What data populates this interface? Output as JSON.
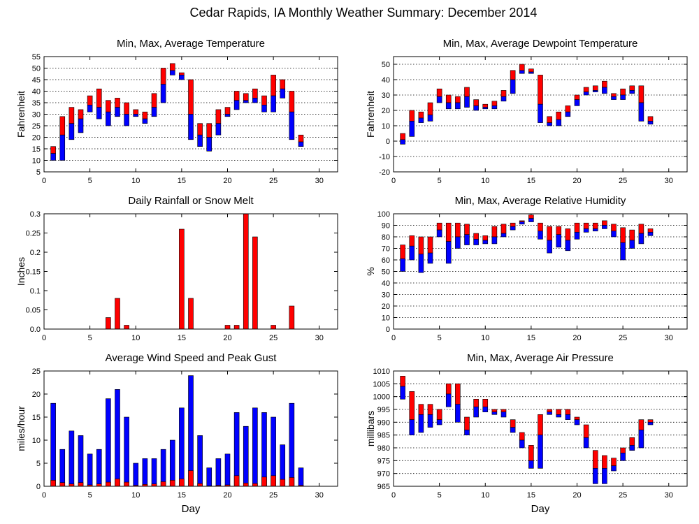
{
  "figure": {
    "title": "Cedar Rapids, IA Monthly Weather Summary: December 2014"
  },
  "colors": {
    "max_segment": "#ff0000",
    "min_segment": "#0000ff",
    "outline": "#000000",
    "grid": "#000000"
  },
  "chart_data": [
    {
      "id": "temp",
      "type": "bar",
      "style": "floating-range",
      "title": "Min, Max, Average Temperature",
      "xlabel": "",
      "ylabel": "Fahrenheit",
      "xlim": [
        0,
        32
      ],
      "ylim": [
        5,
        55
      ],
      "xticks": [
        0,
        5,
        10,
        15,
        20,
        25,
        30
      ],
      "yticks": [
        5,
        10,
        15,
        20,
        25,
        30,
        35,
        40,
        45,
        50,
        55
      ],
      "grid": true,
      "x": [
        1,
        2,
        3,
        4,
        5,
        6,
        7,
        8,
        9,
        10,
        11,
        12,
        13,
        14,
        15,
        16,
        17,
        18,
        19,
        20,
        21,
        22,
        23,
        24,
        25,
        26,
        27,
        28
      ],
      "min": [
        10,
        10,
        19,
        22,
        31,
        28,
        25,
        29,
        25,
        29,
        26,
        29,
        35,
        47,
        45,
        19,
        16,
        14,
        21,
        29,
        32,
        35,
        35,
        31,
        31,
        37,
        19,
        16
      ],
      "avg": [
        13,
        21,
        26,
        28,
        34,
        33,
        31,
        33,
        30,
        30,
        28,
        33,
        43,
        49,
        47,
        30,
        21,
        20,
        26,
        30,
        36,
        36,
        37,
        34,
        38,
        41,
        31,
        18
      ],
      "max": [
        16,
        29,
        33,
        32,
        38,
        41,
        36,
        37,
        35,
        32,
        31,
        39,
        50,
        52,
        48,
        45,
        26,
        26,
        32,
        33,
        40,
        39,
        41,
        38,
        47,
        45,
        40,
        21
      ]
    },
    {
      "id": "dew",
      "type": "bar",
      "style": "floating-range",
      "title": "Min, Max, Average Dewpoint Temperature",
      "xlabel": "",
      "ylabel": "Fahrenheit",
      "xlim": [
        0,
        32
      ],
      "ylim": [
        -20,
        55
      ],
      "xticks": [
        0,
        5,
        10,
        15,
        20,
        25,
        30
      ],
      "yticks": [
        -20,
        -10,
        0,
        10,
        20,
        30,
        40,
        50
      ],
      "grid": true,
      "x": [
        1,
        2,
        3,
        4,
        5,
        6,
        7,
        8,
        9,
        10,
        11,
        12,
        13,
        14,
        15,
        16,
        17,
        18,
        19,
        20,
        21,
        22,
        23,
        24,
        25,
        26,
        27,
        28
      ],
      "min": [
        -2,
        3,
        12,
        13,
        25,
        21,
        21,
        22,
        20,
        21,
        21,
        26,
        31,
        44,
        44,
        12,
        10,
        10,
        16,
        23,
        30,
        32,
        31,
        27,
        27,
        31,
        13,
        11
      ],
      "avg": [
        1,
        13,
        15,
        17,
        29,
        25,
        25,
        29,
        23,
        22,
        23,
        29,
        40,
        46,
        45,
        24,
        12,
        14,
        19,
        27,
        32,
        33,
        35,
        29,
        30,
        33,
        25,
        13
      ],
      "max": [
        5,
        20,
        19,
        25,
        34,
        30,
        29,
        35,
        27,
        24,
        26,
        33,
        46,
        50,
        47,
        43,
        16,
        19,
        23,
        30,
        35,
        36,
        39,
        31,
        34,
        36,
        36,
        16
      ]
    },
    {
      "id": "rain",
      "type": "bar",
      "title": "Daily Rainfall or Snow Melt",
      "xlabel": "",
      "ylabel": "Inches",
      "xlim": [
        0,
        32
      ],
      "ylim": [
        0,
        0.3
      ],
      "xticks": [
        0,
        5,
        10,
        15,
        20,
        25,
        30
      ],
      "yticks": [
        0,
        0.05,
        0.1,
        0.15,
        0.2,
        0.25,
        0.3
      ],
      "ytick_labels": [
        "0.0",
        "0.05",
        "0.1",
        "0.15",
        "0.2",
        "0.25",
        "0.3"
      ],
      "grid": false,
      "x": [
        7,
        8,
        9,
        15,
        16,
        20,
        21,
        22,
        23,
        25,
        27
      ],
      "values": [
        0.03,
        0.08,
        0.01,
        0.26,
        0.08,
        0.01,
        0.01,
        0.3,
        0.24,
        0.01,
        0.06
      ]
    },
    {
      "id": "rh",
      "type": "bar",
      "style": "floating-range",
      "title": "Min, Max, Average Relative Humidity",
      "xlabel": "",
      "ylabel": "%",
      "xlim": [
        0,
        32
      ],
      "ylim": [
        0,
        100
      ],
      "xticks": [
        0,
        5,
        10,
        15,
        20,
        25,
        30
      ],
      "yticks": [
        0,
        10,
        20,
        30,
        40,
        50,
        60,
        70,
        80,
        90,
        100
      ],
      "grid": true,
      "x": [
        1,
        2,
        3,
        4,
        5,
        6,
        7,
        8,
        9,
        10,
        11,
        12,
        13,
        14,
        15,
        16,
        17,
        18,
        19,
        20,
        21,
        22,
        23,
        24,
        25,
        26,
        27,
        28
      ],
      "min": [
        50,
        60,
        49,
        57,
        80,
        57,
        70,
        73,
        73,
        74,
        74,
        80,
        86,
        91,
        93,
        78,
        66,
        71,
        68,
        78,
        84,
        85,
        87,
        80,
        60,
        70,
        74,
        81
      ],
      "avg": [
        61,
        72,
        65,
        66,
        86,
        76,
        80,
        82,
        78,
        77,
        80,
        83,
        89,
        93,
        96,
        85,
        77,
        82,
        77,
        84,
        87,
        87,
        90,
        85,
        75,
        77,
        83,
        84
      ],
      "max": [
        73,
        81,
        80,
        80,
        92,
        92,
        92,
        91,
        83,
        81,
        89,
        91,
        92,
        94,
        99,
        92,
        89,
        89,
        87,
        92,
        92,
        92,
        94,
        91,
        88,
        86,
        91,
        87
      ]
    },
    {
      "id": "wind",
      "type": "bar",
      "style": "overlay",
      "title": "Average Wind Speed and Peak Gust",
      "xlabel": "Day",
      "ylabel": "miles/hour",
      "xlim": [
        0,
        32
      ],
      "ylim": [
        0,
        25
      ],
      "xticks": [
        0,
        5,
        10,
        15,
        20,
        25,
        30
      ],
      "yticks": [
        0,
        5,
        10,
        15,
        20,
        25
      ],
      "grid": false,
      "x": [
        1,
        2,
        3,
        4,
        5,
        6,
        7,
        8,
        9,
        10,
        11,
        12,
        13,
        14,
        15,
        16,
        17,
        18,
        19,
        20,
        21,
        22,
        23,
        24,
        25,
        26,
        27,
        28
      ],
      "gust": [
        18,
        8,
        12,
        11,
        7,
        8,
        19,
        21,
        15,
        5,
        6,
        6,
        8,
        10,
        17,
        24,
        11,
        4,
        6,
        7,
        16,
        13,
        17,
        16,
        15,
        9,
        18,
        4
      ],
      "average": [
        1.3,
        0.8,
        0.5,
        0.8,
        0.3,
        0.5,
        0.9,
        1.6,
        0.9,
        0.2,
        0.4,
        0.5,
        1.0,
        1.3,
        1.6,
        3.4,
        0.6,
        0.1,
        0.2,
        0.3,
        2.3,
        0.7,
        0.6,
        2.0,
        2.3,
        1.5,
        1.9,
        0.2
      ]
    },
    {
      "id": "pres",
      "type": "bar",
      "style": "floating-range",
      "title": "Min, Max, Average Air Pressure",
      "xlabel": "Day",
      "ylabel": "millibars",
      "xlim": [
        0,
        32
      ],
      "ylim": [
        965,
        1010
      ],
      "xticks": [
        0,
        5,
        10,
        15,
        20,
        25,
        30
      ],
      "yticks": [
        965,
        970,
        975,
        980,
        985,
        990,
        995,
        1000,
        1005,
        1010
      ],
      "grid": true,
      "x": [
        1,
        2,
        3,
        4,
        5,
        6,
        7,
        8,
        9,
        10,
        11,
        12,
        13,
        14,
        15,
        16,
        17,
        18,
        19,
        20,
        21,
        22,
        23,
        24,
        25,
        26,
        27,
        28
      ],
      "min": [
        999,
        985,
        986,
        988,
        989,
        996,
        990,
        985,
        992,
        994,
        993,
        992,
        986,
        980,
        972,
        972,
        993,
        992,
        991,
        989,
        980,
        966,
        966,
        971,
        975,
        979,
        980,
        989
      ],
      "avg": [
        1004,
        991,
        993,
        993,
        991,
        1001,
        997,
        987,
        996,
        996,
        994,
        994,
        988,
        983,
        975,
        985,
        994,
        993,
        993,
        991,
        984,
        972,
        972,
        973,
        978,
        981,
        987,
        990
      ],
      "max": [
        1008,
        1002,
        997,
        997,
        995,
        1005,
        1005,
        992,
        999,
        999,
        995,
        995,
        991,
        986,
        981,
        993,
        995,
        995,
        995,
        992,
        989,
        979,
        977,
        976,
        980,
        984,
        991,
        991
      ]
    }
  ]
}
